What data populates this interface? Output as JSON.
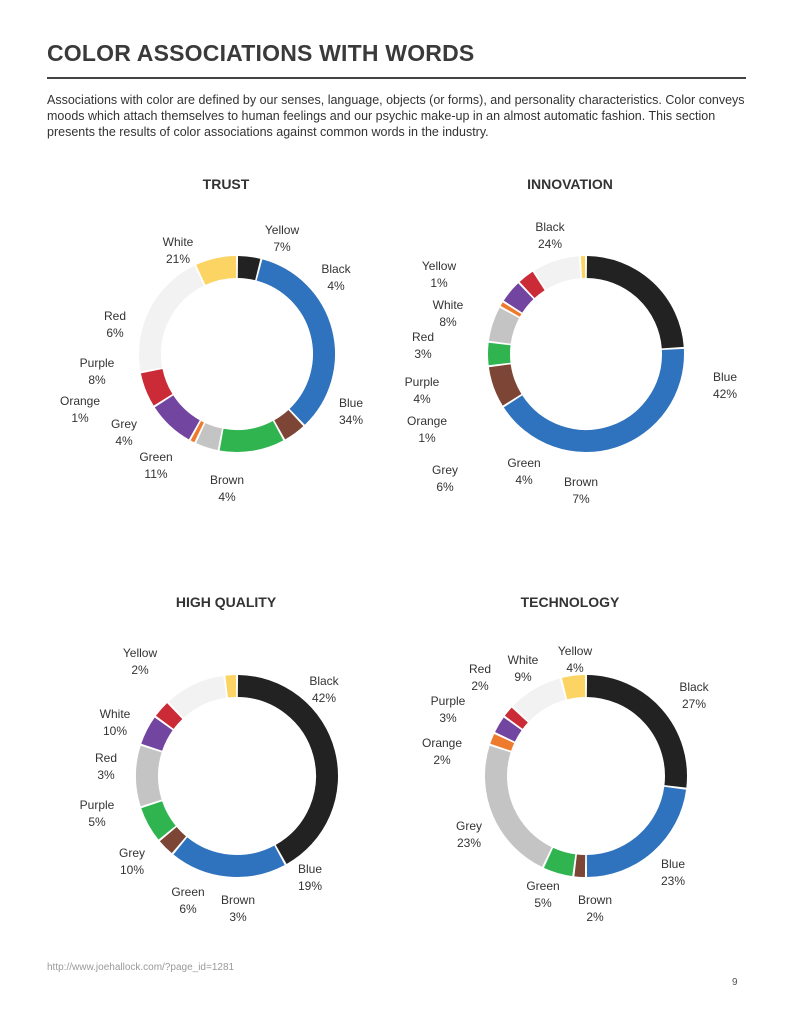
{
  "page": {
    "title": "COLOR ASSOCIATIONS WITH WORDS",
    "intro": "Associations with color are defined by our senses, language, objects (or forms), and personality characteristics. Color conveys moods which attach themselves to human feelings and our psychic make-up in an almost automatic fashion. This section presents the results of color associations against common words in the industry.",
    "source_url": "http://www.joehallock.com/?page_id=1281",
    "page_number": "9"
  },
  "colors": {
    "Blue": "#2f72bd",
    "Black": "#222222",
    "Yellow": "#fcd464",
    "White": "#f2f2f2",
    "Red": "#cb2b36",
    "Purple": "#7245a0",
    "Orange": "#ee7a2e",
    "Grey": "#c4c4c4",
    "Green": "#2fb450",
    "Brown": "#7d4535"
  },
  "chart_data": [
    {
      "type": "pie",
      "title": "TRUST",
      "slices": [
        {
          "label": "Blue",
          "value": 34,
          "text": "34%"
        },
        {
          "label": "Brown",
          "value": 4,
          "text": "4%"
        },
        {
          "label": "Green",
          "value": 11,
          "text": "11%"
        },
        {
          "label": "Grey",
          "value": 4,
          "text": "4%"
        },
        {
          "label": "Orange",
          "value": 1,
          "text": "1%"
        },
        {
          "label": "Purple",
          "value": 8,
          "text": "8%"
        },
        {
          "label": "Red",
          "value": 6,
          "text": "6%"
        },
        {
          "label": "White",
          "value": 21,
          "text": "21%"
        },
        {
          "label": "Yellow",
          "value": 7,
          "text": "7%"
        },
        {
          "label": "Black",
          "value": 4,
          "text": "4%"
        }
      ]
    },
    {
      "type": "pie",
      "title": "INNOVATION",
      "slices": [
        {
          "label": "Blue",
          "value": 42,
          "text": "42%"
        },
        {
          "label": "Brown",
          "value": 7,
          "text": "7%"
        },
        {
          "label": "Green",
          "value": 4,
          "text": "4%"
        },
        {
          "label": "Grey",
          "value": 6,
          "text": "6%"
        },
        {
          "label": "Orange",
          "value": 1,
          "text": "1%"
        },
        {
          "label": "Purple",
          "value": 4,
          "text": "4%"
        },
        {
          "label": "Red",
          "value": 3,
          "text": "3%"
        },
        {
          "label": "White",
          "value": 8,
          "text": "8%"
        },
        {
          "label": "Yellow",
          "value": 1,
          "text": "1%"
        },
        {
          "label": "Black",
          "value": 24,
          "text": "24%"
        }
      ]
    },
    {
      "type": "pie",
      "title": "HIGH QUALITY",
      "slices": [
        {
          "label": "Blue",
          "value": 19,
          "text": "19%"
        },
        {
          "label": "Brown",
          "value": 3,
          "text": "3%"
        },
        {
          "label": "Green",
          "value": 6,
          "text": "6%"
        },
        {
          "label": "Grey",
          "value": 10,
          "text": "10%"
        },
        {
          "label": "Purple",
          "value": 5,
          "text": "5%"
        },
        {
          "label": "Red",
          "value": 3,
          "text": "3%"
        },
        {
          "label": "White",
          "value": 10,
          "text": "10%"
        },
        {
          "label": "Yellow",
          "value": 2,
          "text": "2%"
        },
        {
          "label": "Black",
          "value": 42,
          "text": "42%"
        }
      ]
    },
    {
      "type": "pie",
      "title": "TECHNOLOGY",
      "slices": [
        {
          "label": "Black",
          "value": 27,
          "text": "27%"
        },
        {
          "label": "Blue",
          "value": 23,
          "text": "23%"
        },
        {
          "label": "Brown",
          "value": 2,
          "text": "2%"
        },
        {
          "label": "Green",
          "value": 5,
          "text": "5%"
        },
        {
          "label": "Grey",
          "value": 23,
          "text": "23%"
        },
        {
          "label": "Orange",
          "value": 2,
          "text": "2%"
        },
        {
          "label": "Purple",
          "value": 3,
          "text": "3%"
        },
        {
          "label": "Red",
          "value": 2,
          "text": "2%"
        },
        {
          "label": "White",
          "value": 9,
          "text": "9%"
        },
        {
          "label": "Yellow",
          "value": 4,
          "text": "4%"
        }
      ]
    }
  ]
}
